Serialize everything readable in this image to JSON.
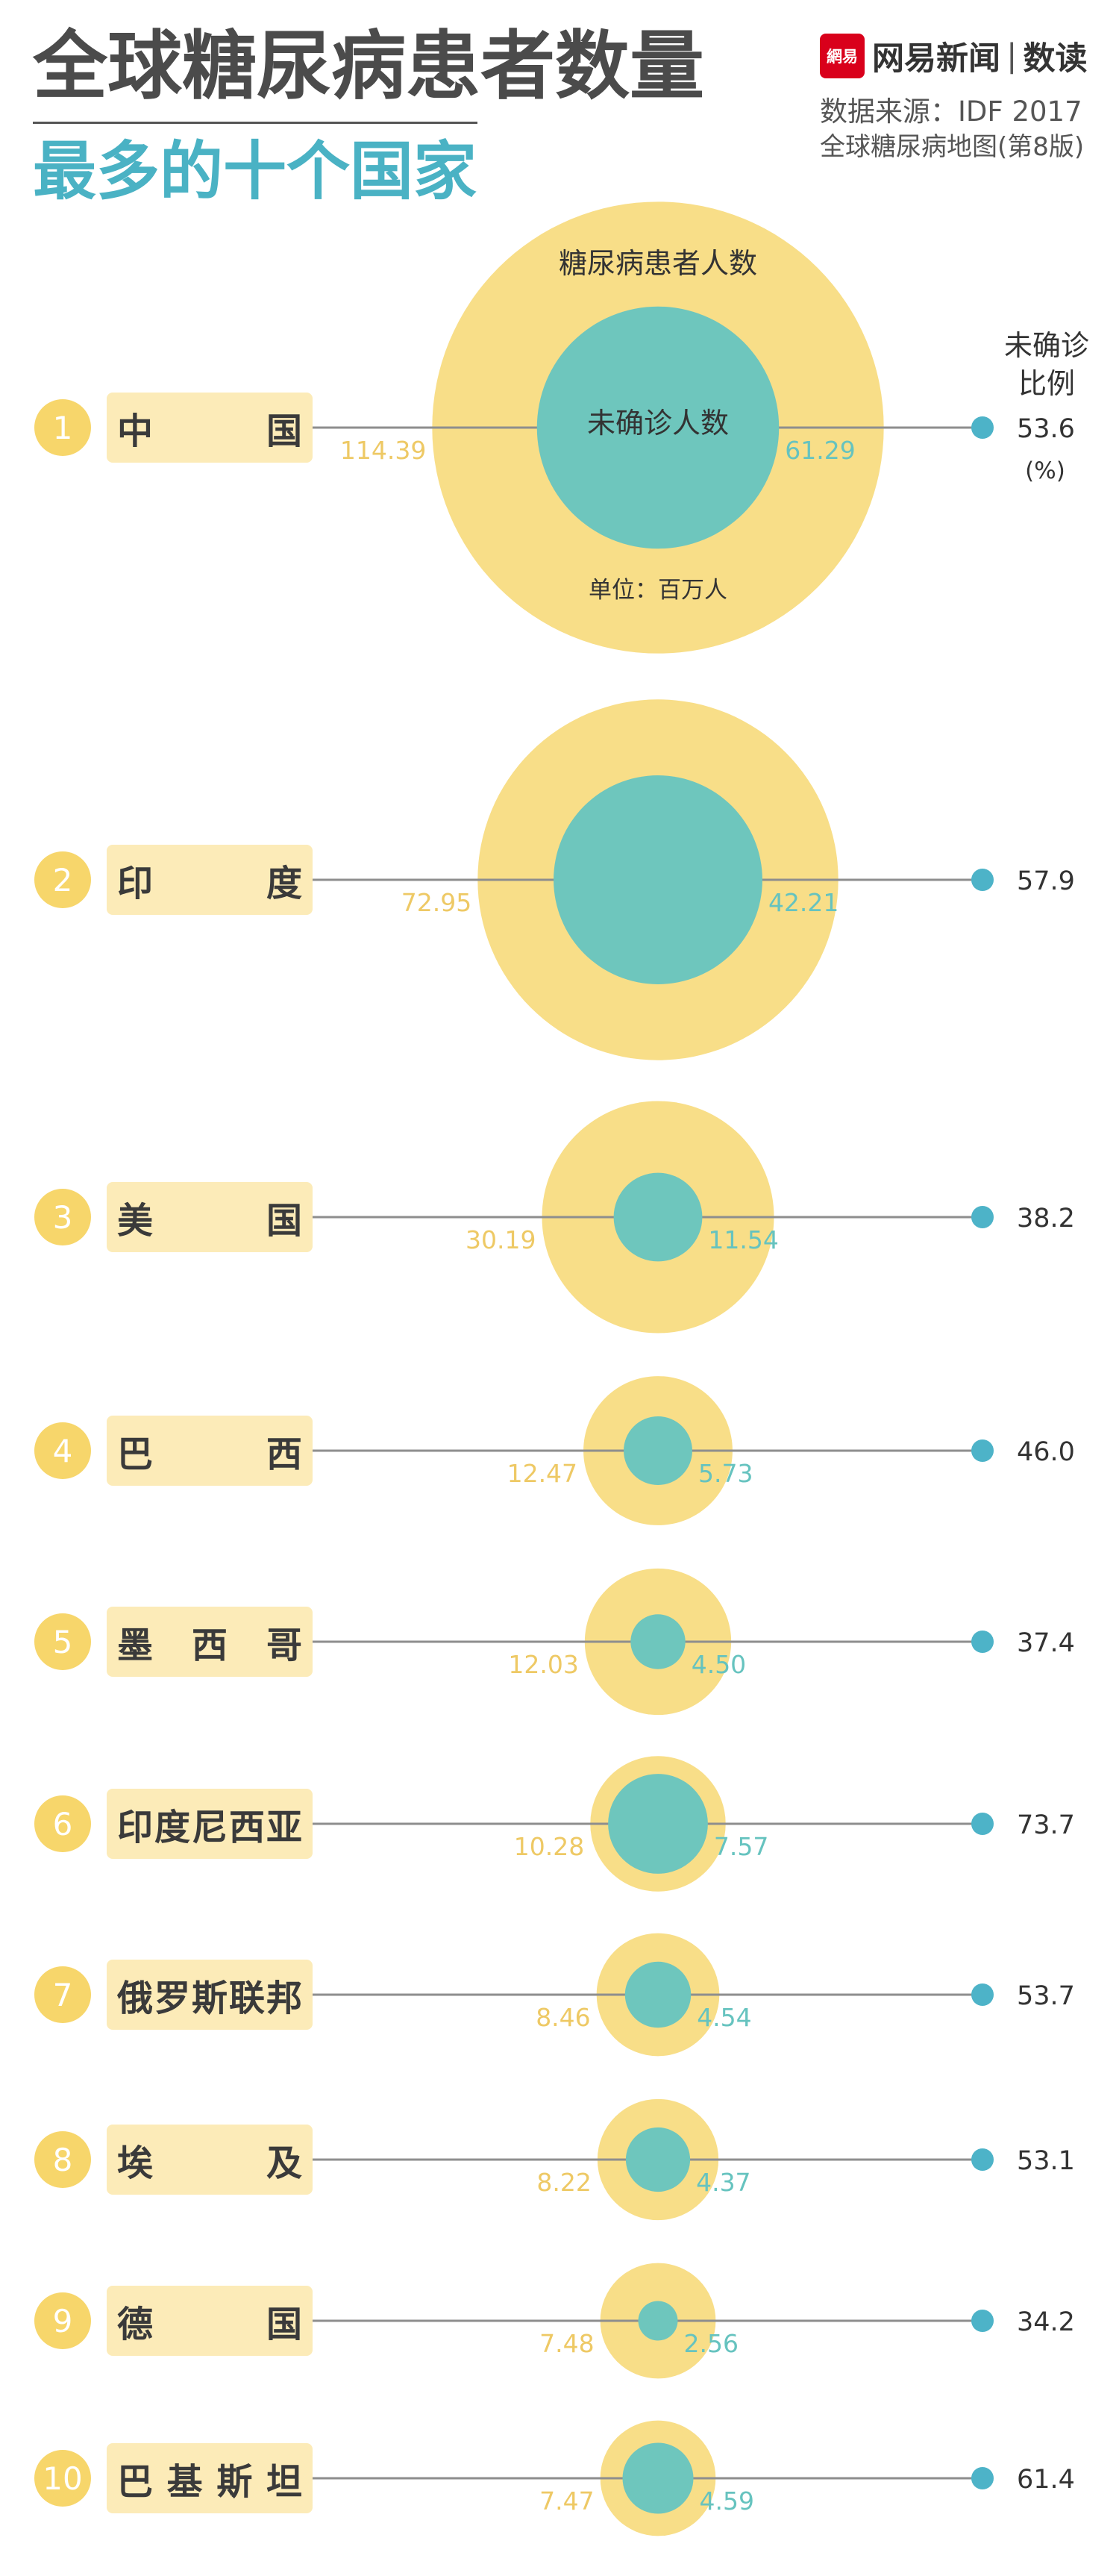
{
  "header": {
    "title": "全球糖尿病患者数量",
    "subtitle": "最多的十个国家",
    "brand_logo_text": "網易",
    "brand_name": "网易新闻",
    "brand_separator": "|",
    "brand_column": "数读",
    "source": "数据来源：IDF 2017",
    "source_detail": "全球糖尿病地图(第8版)"
  },
  "colors": {
    "total": "#f8de88",
    "undiagnosed": "#6ec6bd",
    "line": "#8e8e8e",
    "dot": "#4db3c8",
    "total_label": "#eec965",
    "undiagnosed_label": "#66c3bf",
    "badge": "#f7d66b",
    "label_box": "#fcebb8",
    "title": "#4b4b4b",
    "subtitle": "#4ab2c4",
    "brand_red": "#d9001b"
  },
  "chart_data": {
    "type": "scatter",
    "title": "全球糖尿病患者数量",
    "subtitle": "最多的十个国家",
    "size_legend": {
      "outer": "糖尿病患者人数",
      "inner": "未确诊人数",
      "unit": "单位：百万人"
    },
    "ratio_header": [
      "未确诊",
      "比例"
    ],
    "ratio_unit": "(%)",
    "rows": [
      {
        "rank": 1,
        "country": "中国",
        "total": 114.39,
        "undiagnosed": 61.29,
        "undiagnosed_pct": 53.6
      },
      {
        "rank": 2,
        "country": "印度",
        "total": 72.95,
        "undiagnosed": 42.21,
        "undiagnosed_pct": 57.9
      },
      {
        "rank": 3,
        "country": "美国",
        "total": 30.19,
        "undiagnosed": 11.54,
        "undiagnosed_pct": 38.2
      },
      {
        "rank": 4,
        "country": "巴西",
        "total": 12.47,
        "undiagnosed": 5.73,
        "undiagnosed_pct": 46.0
      },
      {
        "rank": 5,
        "country": "墨西哥",
        "total": 12.03,
        "undiagnosed": 4.5,
        "undiagnosed_pct": 37.4
      },
      {
        "rank": 6,
        "country": "印度尼西亚",
        "total": 10.28,
        "undiagnosed": 7.57,
        "undiagnosed_pct": 73.7
      },
      {
        "rank": 7,
        "country": "俄罗斯联邦",
        "total": 8.46,
        "undiagnosed": 4.54,
        "undiagnosed_pct": 53.7
      },
      {
        "rank": 8,
        "country": "埃及",
        "total": 8.22,
        "undiagnosed": 4.37,
        "undiagnosed_pct": 53.1
      },
      {
        "rank": 9,
        "country": "德国",
        "total": 7.48,
        "undiagnosed": 2.56,
        "undiagnosed_pct": 34.2
      },
      {
        "rank": 10,
        "country": "巴基斯坦",
        "total": 7.47,
        "undiagnosed": 4.59,
        "undiagnosed_pct": 61.4
      }
    ]
  }
}
